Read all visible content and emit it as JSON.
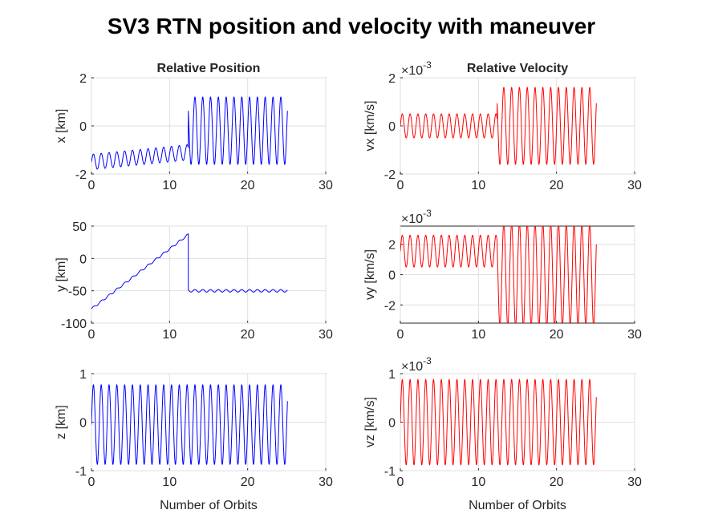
{
  "figure": {
    "title": "SV3 RTN position and velocity with maneuver"
  },
  "colors": {
    "position_line": "#0000ff",
    "velocity_line": "#ff0000",
    "axis": "#262626",
    "grid": "#dfdfdf"
  },
  "chart_data": [
    {
      "id": "x",
      "type": "line",
      "title": "Relative Position",
      "ylabel": "x [km]",
      "xlabel": "",
      "exponent": "",
      "xlim": [
        0,
        30
      ],
      "ylim": [
        -2,
        2
      ],
      "xticks": [
        "0",
        "10",
        "20",
        "30"
      ],
      "yticks": [
        "-2",
        "0",
        "2"
      ],
      "grid": true,
      "color": "#0000ff",
      "series": [
        {
          "x": [
            0,
            12.4,
            12.41,
            25.1
          ],
          "before_maneuver": {
            "x_range": [
              0,
              12.4
            ],
            "center_start": -1.5,
            "center_end": -1.1,
            "amplitude": 0.32,
            "cycles_per_orbit": 1
          },
          "after_maneuver": {
            "x_range": [
              12.4,
              25.1
            ],
            "center": -0.2,
            "amplitude": 1.4,
            "cycles_per_orbit": 1
          }
        }
      ]
    },
    {
      "id": "vx",
      "type": "line",
      "title": "Relative Velocity",
      "ylabel": "vx [km/s]",
      "xlabel": "",
      "exponent": "×10",
      "exponent_power": "-3",
      "xlim": [
        0,
        30
      ],
      "ylim": [
        -2,
        2
      ],
      "xticks": [
        "0",
        "10",
        "20",
        "30"
      ],
      "yticks": [
        "-2",
        "0",
        "2"
      ],
      "grid": true,
      "color": "#ff0000",
      "series": [
        {
          "x": [
            0,
            12.4,
            12.41,
            25.1
          ],
          "before_maneuver": {
            "x_range": [
              0,
              12.4
            ],
            "center": 0.0,
            "amplitude": 0.5,
            "cycles_per_orbit": 1
          },
          "after_maneuver": {
            "x_range": [
              12.4,
              25.1
            ],
            "center": 0.0,
            "amplitude": 1.6,
            "cycles_per_orbit": 1
          }
        }
      ]
    },
    {
      "id": "y",
      "type": "line",
      "title": "",
      "ylabel": "y [km]",
      "xlabel": "",
      "exponent": "",
      "xlim": [
        0,
        30
      ],
      "ylim": [
        -100,
        50
      ],
      "xticks": [
        "0",
        "10",
        "20",
        "30"
      ],
      "yticks": [
        "-100",
        "-50",
        "0",
        "50"
      ],
      "grid": true,
      "color": "#0000ff",
      "series": [
        {
          "x": [
            0,
            12.4,
            12.41,
            25.1
          ],
          "before_maneuver": {
            "x_range": [
              0,
              12.4
            ],
            "start": -78,
            "end": 37,
            "amplitude": 1.5,
            "cycles_per_orbit": 1
          },
          "after_maneuver": {
            "x_range": [
              12.4,
              25.1
            ],
            "center": -50,
            "amplitude": 2,
            "cycles_per_orbit": 1
          }
        }
      ]
    },
    {
      "id": "vy",
      "type": "line",
      "title": "",
      "ylabel": "vy [km/s]",
      "xlabel": "",
      "exponent": "×10",
      "exponent_power": "-3",
      "xlim": [
        0,
        30
      ],
      "ylim": [
        -3.2,
        3.2
      ],
      "xticks": [
        "0",
        "10",
        "20",
        "30"
      ],
      "yticks": [
        "-2",
        "0",
        "2"
      ],
      "grid": true,
      "color": "#ff0000",
      "series": [
        {
          "x": [
            0,
            12.4,
            12.41,
            25.1
          ],
          "before_maneuver": {
            "x_range": [
              0,
              12.4
            ],
            "center": 1.55,
            "amplitude": 1.05,
            "cycles_per_orbit": 1
          },
          "after_maneuver": {
            "x_range": [
              12.4,
              25.1
            ],
            "center": 0.0,
            "amplitude": 3.4,
            "cycles_per_orbit": 1
          }
        }
      ]
    },
    {
      "id": "z",
      "type": "line",
      "title": "",
      "ylabel": "z [km]",
      "xlabel": "Number of Orbits",
      "exponent": "",
      "xlim": [
        0,
        30
      ],
      "ylim": [
        -1,
        1
      ],
      "xticks": [
        "0",
        "10",
        "20",
        "30"
      ],
      "yticks": [
        "-1",
        "0",
        "1"
      ],
      "grid": true,
      "color": "#0000ff",
      "series": [
        {
          "x": [
            0,
            25.1
          ],
          "oscillation": {
            "x_range": [
              0,
              25.1
            ],
            "center": -0.05,
            "amplitude": 0.82,
            "cycles_per_orbit": 1
          }
        }
      ]
    },
    {
      "id": "vz",
      "type": "line",
      "title": "",
      "ylabel": "vz [km/s]",
      "xlabel": "Number of Orbits",
      "exponent": "×10",
      "exponent_power": "-3",
      "xlim": [
        0,
        30
      ],
      "ylim": [
        -1,
        1
      ],
      "xticks": [
        "0",
        "10",
        "20",
        "30"
      ],
      "yticks": [
        "-1",
        "0",
        "1"
      ],
      "grid": true,
      "color": "#ff0000",
      "series": [
        {
          "x": [
            0,
            25.1
          ],
          "oscillation": {
            "x_range": [
              0,
              25.1
            ],
            "center": 0.0,
            "amplitude": 0.88,
            "cycles_per_orbit": 1
          }
        }
      ]
    }
  ]
}
